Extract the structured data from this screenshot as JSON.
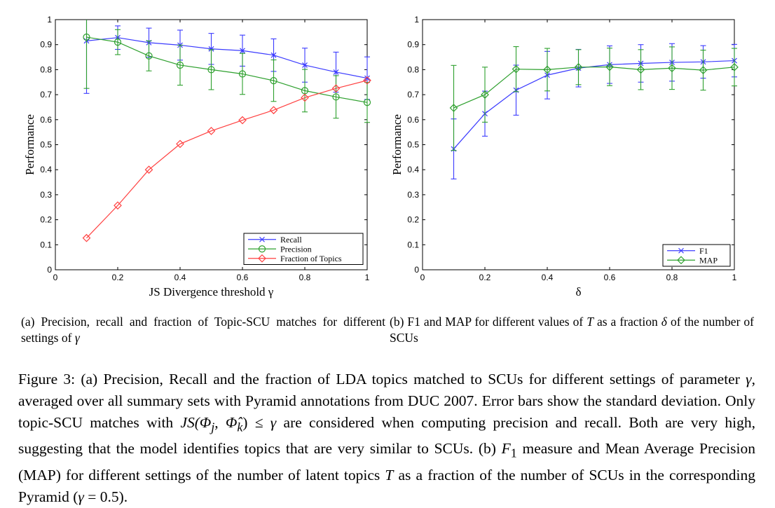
{
  "chart_data": [
    {
      "type": "line",
      "xlabel": "JS Divergence threshold γ",
      "ylabel": "Performance",
      "xlim": [
        0,
        1
      ],
      "ylim": [
        0,
        1
      ],
      "xticks": [
        "0",
        "0.2",
        "0.4",
        "0.6",
        "0.8",
        "1"
      ],
      "yticks": [
        "0",
        "0.1",
        "0.2",
        "0.3",
        "0.4",
        "0.5",
        "0.6",
        "0.7",
        "0.8",
        "0.9",
        "1"
      ],
      "grid": false,
      "legend_position": "bottom-right",
      "x": [
        0.1,
        0.2,
        0.3,
        0.4,
        0.5,
        0.6,
        0.7,
        0.8,
        0.9,
        1.0
      ],
      "series": [
        {
          "name": "Recall",
          "color": "#3b3bff",
          "marker": "x",
          "values": [
            0.915,
            0.928,
            0.908,
            0.898,
            0.883,
            0.876,
            0.858,
            0.818,
            0.79,
            0.766
          ],
          "err": [
            0.21,
            0.047,
            0.058,
            0.06,
            0.062,
            0.062,
            0.065,
            0.068,
            0.08,
            0.085
          ]
        },
        {
          "name": "Precision",
          "color": "#2ea02e",
          "marker": "o",
          "values": [
            0.93,
            0.91,
            0.855,
            0.818,
            0.8,
            0.783,
            0.756,
            0.716,
            0.691,
            0.669
          ],
          "err": [
            0.205,
            0.05,
            0.06,
            0.08,
            0.08,
            0.082,
            0.083,
            0.085,
            0.085,
            0.08
          ]
        },
        {
          "name": "Fraction of Topics",
          "color": "#ff4040",
          "marker": "diamond",
          "values": [
            0.127,
            0.257,
            0.4,
            0.503,
            0.555,
            0.598,
            0.638,
            0.688,
            0.725,
            0.757
          ],
          "err": null
        }
      ]
    },
    {
      "type": "line",
      "xlabel": "δ",
      "ylabel": "Performance",
      "xlim": [
        0,
        1
      ],
      "ylim": [
        0,
        1
      ],
      "xticks": [
        "0",
        "0.2",
        "0.4",
        "0.6",
        "0.8",
        "1"
      ],
      "yticks": [
        "0",
        "0.1",
        "0.2",
        "0.3",
        "0.4",
        "0.5",
        "0.6",
        "0.7",
        "0.8",
        "0.9",
        "1"
      ],
      "grid": false,
      "legend_position": "bottom-right",
      "x": [
        0.1,
        0.2,
        0.3,
        0.4,
        0.5,
        0.6,
        0.7,
        0.8,
        0.9,
        1.0
      ],
      "series": [
        {
          "name": "F1",
          "color": "#3b3bff",
          "marker": "x",
          "values": [
            0.483,
            0.624,
            0.718,
            0.778,
            0.806,
            0.82,
            0.825,
            0.829,
            0.831,
            0.836
          ],
          "err": [
            0.12,
            0.09,
            0.1,
            0.095,
            0.075,
            0.075,
            0.075,
            0.075,
            0.065,
            0.065
          ]
        },
        {
          "name": "MAP",
          "color": "#2ea02e",
          "marker": "diamond",
          "values": [
            0.647,
            0.7,
            0.802,
            0.8,
            0.81,
            0.811,
            0.8,
            0.806,
            0.798,
            0.81
          ],
          "err": [
            0.17,
            0.11,
            0.09,
            0.085,
            0.07,
            0.075,
            0.08,
            0.085,
            0.08,
            0.075
          ]
        }
      ]
    }
  ],
  "captions": {
    "a": "(a) Precision, recall and fraction of Topic-SCU matches for different settings of γ",
    "b": "(b) F1 and MAP for different values of T as a fraction δ of the number of SCUs",
    "b_pre": "(b)  F1 and MAP for different values of ",
    "b_T": "T",
    "b_mid": " as a fraction ",
    "b_delta": "δ",
    "b_post": " of the number of SCUs",
    "a_pre": "(a) Precision, recall and fraction of Topic-SCU matches for different settings of ",
    "a_gamma": "γ",
    "figure": "Figure 3: (a) Precision, Recall and the fraction of LDA topics matched to SCUs for different settings of parameter γ, averaged over all summary sets with Pyramid annotations from DUC 2007. Error bars show the standard deviation. Only topic-SCU matches with JS(Φj, Φ̂k) ≤ γ are considered when computing precision and recall. Both are very high, suggesting that the model identifies topics that are very similar to SCUs. (b) F1 measure and Mean Average Precision (MAP) for different settings of the number of latent topics T as a fraction of the number of SCUs in the corresponding Pyramid (γ = 0.5).",
    "fig_1": "Figure 3: (a) Precision, Recall and the fraction of LDA topics matched to SCUs for different settings of parameter ",
    "fig_gamma": "γ",
    "fig_2": ", averaged over all summary sets with Pyramid annotations from DUC 2007. Error bars show the standard deviation.  Only topic-SCU matches with ",
    "fig_js": "JS(Φ",
    "fig_j": "j",
    "fig_comma": ", ",
    "fig_phihat": "Φ̂",
    "fig_k": "k",
    "fig_close": ") ≤ ",
    "fig_gamma2": "γ",
    "fig_3": " are considered when computing precision and recall. Both are very high, suggesting that the model identifies topics that are very similar to SCUs. (b) ",
    "fig_F": "F",
    "fig_1sub": "1",
    "fig_4": " measure and Mean Average Precision (MAP) for different settings of the number of latent topics ",
    "fig_T": "T",
    "fig_5": " as a fraction of the number of SCUs in the corresponding Pyramid (",
    "fig_gamma3": "γ",
    "fig_6": " = 0.5)."
  }
}
